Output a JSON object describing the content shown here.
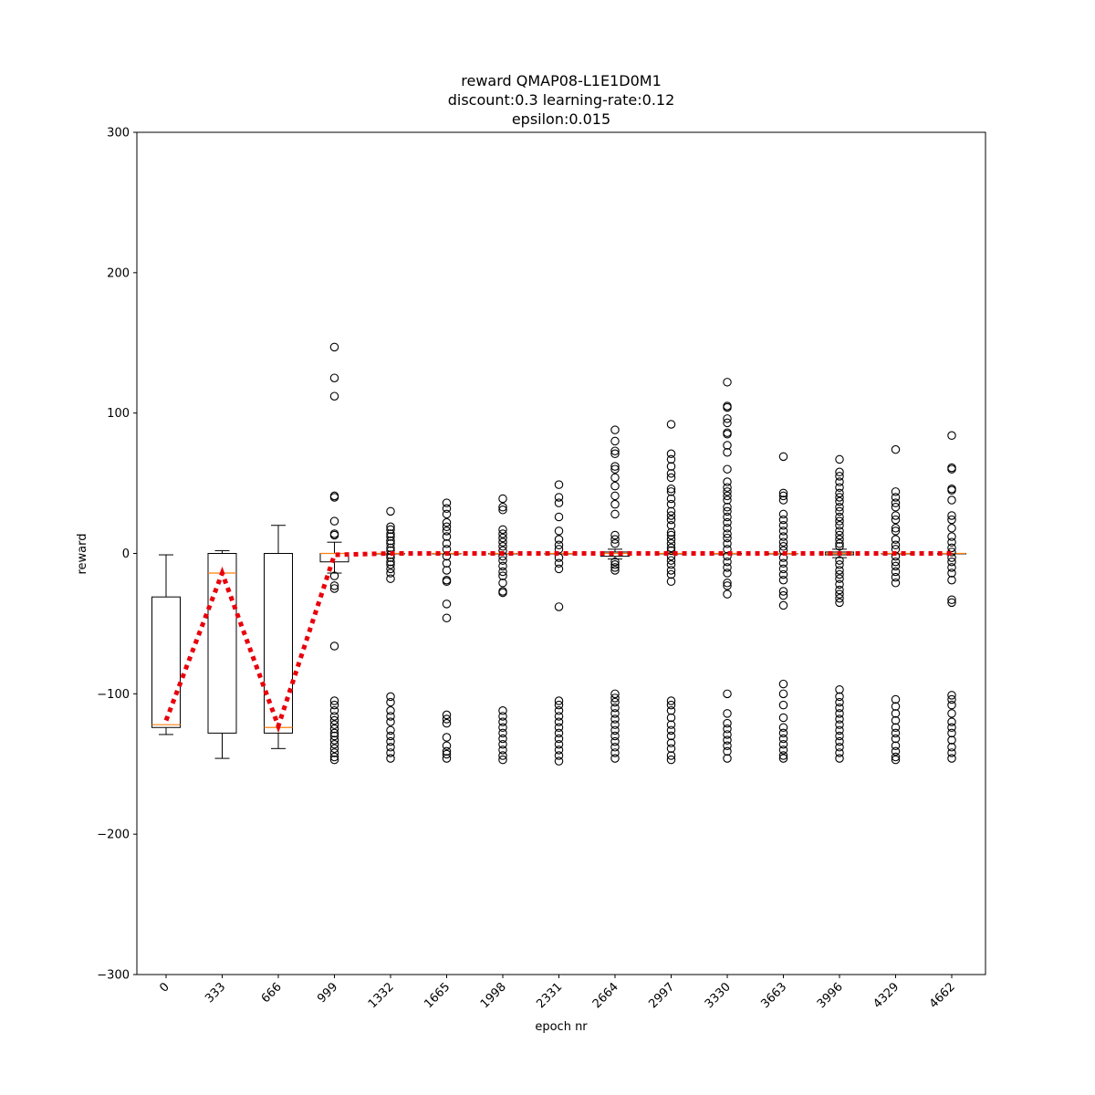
{
  "chart_data": {
    "type": "box",
    "title": [
      "reward QMAP08-L1E1D0M1",
      "discount:0.3 learning-rate:0.12",
      "epsilon:0.015"
    ],
    "xlabel": "epoch nr",
    "ylabel": "reward",
    "ylim": [
      -300,
      300
    ],
    "yticks": [
      -300,
      -200,
      -100,
      0,
      100,
      200,
      300
    ],
    "categories": [
      "0",
      "333",
      "666",
      "999",
      "1332",
      "1665",
      "1998",
      "2331",
      "2664",
      "2997",
      "3330",
      "3663",
      "3996",
      "4329",
      "4662"
    ],
    "boxes": [
      {
        "q1": -124,
        "median": -122,
        "q3": -31,
        "whisker_low": -129,
        "whisker_high": -1,
        "outliers": []
      },
      {
        "q1": -128,
        "median": -14,
        "q3": 0,
        "whisker_low": -146,
        "whisker_high": 2,
        "outliers": []
      },
      {
        "q1": -128,
        "median": -124,
        "q3": 0,
        "whisker_low": -139,
        "whisker_high": 20,
        "outliers": []
      },
      {
        "q1": -6,
        "median": 0,
        "q3": 0,
        "whisker_low": -14,
        "whisker_high": 8,
        "outliers": [
          147,
          125,
          112,
          41,
          40,
          23,
          14,
          13,
          -16,
          -23,
          -25,
          -66,
          -105,
          -108,
          -112,
          -116,
          -119,
          -122,
          -125,
          -128,
          -130,
          -133,
          -136,
          -139,
          -142,
          -145,
          -147
        ]
      },
      {
        "q1": 0,
        "median": 0,
        "q3": 0,
        "whisker_low": 0,
        "whisker_high": 0,
        "outliers": [
          30,
          19,
          17,
          14,
          12,
          9,
          7,
          4,
          2,
          -1,
          -3,
          -6,
          -8,
          -11,
          -14,
          -18,
          -102,
          -106,
          -112,
          -116,
          -120,
          -126,
          -130,
          -134,
          -138,
          -142,
          -146
        ]
      },
      {
        "q1": 0,
        "median": 0,
        "q3": 0,
        "whisker_low": 0,
        "whisker_high": 0,
        "outliers": [
          36,
          32,
          28,
          22,
          19,
          16,
          12,
          7,
          3,
          -2,
          -7,
          -12,
          -19,
          -20,
          -36,
          -46,
          -115,
          -118,
          -121,
          -131,
          -137,
          -141,
          -143,
          -146
        ]
      },
      {
        "q1": 0,
        "median": 0,
        "q3": 0,
        "whisker_low": 0,
        "whisker_high": 0,
        "outliers": [
          39,
          33,
          31,
          17,
          14,
          11,
          8,
          5,
          2,
          -2,
          -5,
          -9,
          -13,
          -16,
          -21,
          -27,
          -28,
          -112,
          -116,
          -120,
          -124,
          -128,
          -132,
          -136,
          -140,
          -144,
          -147
        ]
      },
      {
        "q1": 0,
        "median": 0,
        "q3": 0,
        "whisker_low": 0,
        "whisker_high": 0,
        "outliers": [
          49,
          40,
          36,
          26,
          16,
          10,
          6,
          3,
          -3,
          -7,
          -11,
          -38,
          -105,
          -108,
          -112,
          -116,
          -120,
          -124,
          -128,
          -132,
          -136,
          -140,
          -144,
          -148
        ]
      },
      {
        "q1": -2,
        "median": 0,
        "q3": 1,
        "whisker_low": -4,
        "whisker_high": 3,
        "outliers": [
          88,
          80,
          73,
          71,
          62,
          60,
          54,
          48,
          41,
          35,
          28,
          13,
          10,
          7,
          -6,
          -8,
          -10,
          -12,
          -100,
          -103,
          -106,
          -110,
          -114,
          -118,
          -122,
          -126,
          -130,
          -134,
          -138,
          -142,
          -146
        ]
      },
      {
        "q1": 0,
        "median": 0,
        "q3": 0,
        "whisker_low": 0,
        "whisker_high": 0,
        "outliers": [
          92,
          71,
          67,
          62,
          57,
          54,
          46,
          44,
          39,
          35,
          30,
          27,
          24,
          20,
          15,
          13,
          10,
          7,
          4,
          2,
          -2,
          -5,
          -8,
          -12,
          -15,
          -20,
          -105,
          -108,
          -112,
          -117,
          -122,
          -126,
          -130,
          -135,
          -139,
          -144,
          -147
        ]
      },
      {
        "q1": 0,
        "median": 0,
        "q3": 0,
        "whisker_low": 0,
        "whisker_high": 0,
        "outliers": [
          122,
          105,
          104,
          96,
          93,
          86,
          85,
          77,
          72,
          60,
          51,
          47,
          44,
          41,
          38,
          33,
          30,
          26,
          22,
          18,
          14,
          11,
          7,
          3,
          -2,
          -6,
          -10,
          -14,
          -21,
          -23,
          -29,
          -100,
          -114,
          -121,
          -125,
          -129,
          -133,
          -137,
          -141,
          -146
        ]
      },
      {
        "q1": 0,
        "median": 0,
        "q3": 0,
        "whisker_low": 0,
        "whisker_high": 0,
        "outliers": [
          69,
          43,
          41,
          38,
          28,
          24,
          20,
          16,
          12,
          8,
          5,
          2,
          -3,
          -7,
          -11,
          -15,
          -19,
          -27,
          -30,
          -37,
          -93,
          -100,
          -108,
          -117,
          -124,
          -128,
          -132,
          -136,
          -140,
          -144,
          -146
        ]
      },
      {
        "q1": -1,
        "median": 0,
        "q3": 1,
        "whisker_low": -3,
        "whisker_high": 3,
        "outliers": [
          67,
          58,
          55,
          51,
          47,
          43,
          40,
          37,
          33,
          30,
          26,
          23,
          20,
          16,
          13,
          10,
          7,
          5,
          -5,
          -8,
          -12,
          -15,
          -18,
          -22,
          -26,
          -29,
          -32,
          -35,
          -97,
          -102,
          -106,
          -110,
          -114,
          -118,
          -122,
          -126,
          -130,
          -134,
          -138,
          -142,
          -146
        ]
      },
      {
        "q1": 0,
        "median": 0,
        "q3": 0,
        "whisker_low": 0,
        "whisker_high": 0,
        "outliers": [
          74,
          44,
          40,
          36,
          33,
          27,
          24,
          18,
          16,
          10,
          6,
          3,
          -2,
          -6,
          -9,
          -13,
          -17,
          -21,
          -104,
          -109,
          -114,
          -119,
          -124,
          -128,
          -132,
          -137,
          -141,
          -145,
          -147
        ]
      },
      {
        "q1": 0,
        "median": 0,
        "q3": 0,
        "whisker_low": 0,
        "whisker_high": 0,
        "outliers": [
          84,
          61,
          60,
          46,
          45,
          38,
          27,
          24,
          18,
          12,
          8,
          4,
          1,
          -3,
          -6,
          -10,
          -14,
          -19,
          -33,
          -35,
          -101,
          -104,
          -108,
          -114,
          -120,
          -124,
          -128,
          -133,
          -138,
          -142,
          -146
        ]
      }
    ],
    "mean_line": {
      "color": "#e8000b",
      "style": "dotted",
      "values": [
        -119,
        -14,
        -123,
        -1,
        0,
        0,
        0,
        0,
        0,
        0,
        0,
        0,
        0,
        0,
        0
      ]
    },
    "colors": {
      "box": "#000000",
      "median": "#ff7f0e",
      "mean_line": "#e8000b"
    }
  }
}
